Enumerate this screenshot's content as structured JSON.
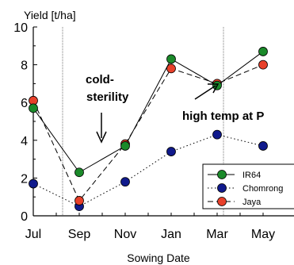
{
  "chart_data": {
    "type": "line",
    "ylabel": "Yield [t/ha]",
    "xlabel": "Sowing Date",
    "ylim": [
      0,
      10
    ],
    "yticks": [
      0,
      2,
      4,
      6,
      8,
      10
    ],
    "xticks": [
      "Jul",
      "Sep",
      "Nov",
      "Jan",
      "Mar",
      "May"
    ],
    "grid": false,
    "vlines": [
      "Aug",
      "Mar"
    ],
    "legend_position": "bottom-right",
    "annotations": [
      "cold-\nsterility",
      "high temp at P"
    ],
    "series": [
      {
        "name": "IR64",
        "marker_color": "#1b8a2a",
        "line_style": "solid",
        "points": [
          {
            "x": "Jul",
            "y": 5.7
          },
          {
            "x": "Sep",
            "y": 2.3
          },
          {
            "x": "Nov",
            "y": 3.7
          },
          {
            "x": "Jan",
            "y": 8.3
          },
          {
            "x": "Mar",
            "y": 6.9
          },
          {
            "x": "May",
            "y": 8.7
          }
        ]
      },
      {
        "name": "Chomrong",
        "marker_color": "#101a8c",
        "line_style": "dotted",
        "points": [
          {
            "x": "Jul",
            "y": 1.7
          },
          {
            "x": "Sep",
            "y": 0.5
          },
          {
            "x": "Nov",
            "y": 1.8
          },
          {
            "x": "Jan",
            "y": 3.4
          },
          {
            "x": "Mar",
            "y": 4.3
          },
          {
            "x": "May",
            "y": 3.7
          }
        ]
      },
      {
        "name": "Jaya",
        "marker_color": "#e8402a",
        "line_style": "dashed",
        "points": [
          {
            "x": "Jul",
            "y": 6.1
          },
          {
            "x": "Sep",
            "y": 0.8
          },
          {
            "x": "Nov",
            "y": 3.8
          },
          {
            "x": "Jan",
            "y": 7.8
          },
          {
            "x": "Mar",
            "y": 7.0
          },
          {
            "x": "May",
            "y": 8.0
          }
        ]
      }
    ]
  }
}
